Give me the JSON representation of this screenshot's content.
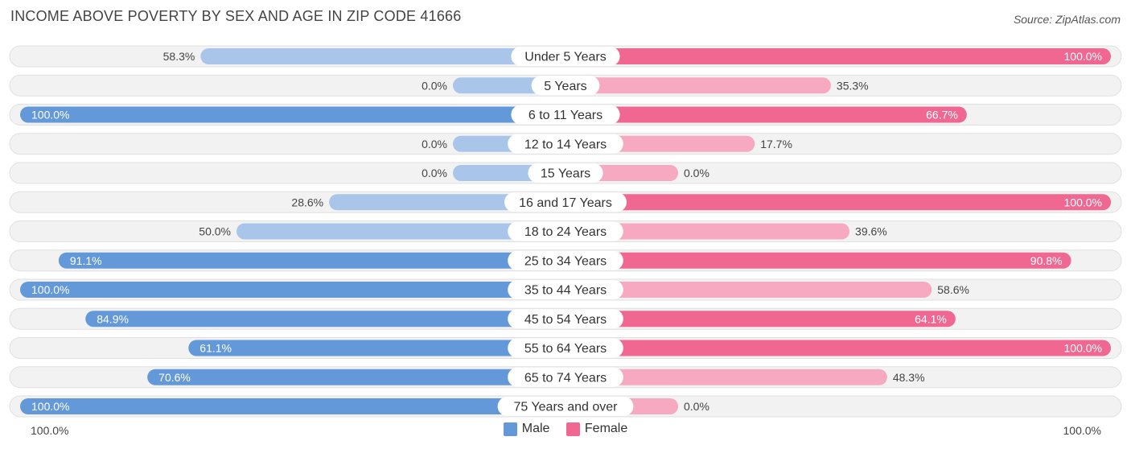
{
  "title": "INCOME ABOVE POVERTY BY SEX AND AGE IN ZIP CODE 41666",
  "source": "Source: ZipAtlas.com",
  "axis": {
    "left_label": "100.0%",
    "right_label": "100.0%"
  },
  "legend": {
    "male": "Male",
    "female": "Female"
  },
  "colors": {
    "male_strong": "#6399d9",
    "male_light": "#a9c6ea",
    "female_strong": "#f06892",
    "female_light": "#f6a9c1",
    "row_bg": "#f2f2f2",
    "row_border": "#e0e0e0"
  },
  "chart_data": {
    "type": "bar",
    "orientation": "horizontal-diverging",
    "categories": [
      "Under 5 Years",
      "5 Years",
      "6 to 11 Years",
      "12 to 14 Years",
      "15 Years",
      "16 and 17 Years",
      "18 to 24 Years",
      "25 to 34 Years",
      "35 to 44 Years",
      "45 to 54 Years",
      "55 to 64 Years",
      "65 to 74 Years",
      "75 Years and over"
    ],
    "series": [
      {
        "name": "Male",
        "values": [
          58.3,
          0.0,
          100.0,
          0.0,
          0.0,
          28.6,
          50.0,
          91.1,
          100.0,
          84.9,
          61.1,
          70.6,
          100.0
        ],
        "labels": [
          "58.3%",
          "0.0%",
          "100.0%",
          "0.0%",
          "0.0%",
          "28.6%",
          "50.0%",
          "91.1%",
          "100.0%",
          "84.9%",
          "61.1%",
          "70.6%",
          "100.0%"
        ]
      },
      {
        "name": "Female",
        "values": [
          100.0,
          35.3,
          66.7,
          17.7,
          0.0,
          100.0,
          39.6,
          90.8,
          58.6,
          64.1,
          100.0,
          48.3,
          0.0
        ],
        "labels": [
          "100.0%",
          "35.3%",
          "66.7%",
          "17.7%",
          "0.0%",
          "100.0%",
          "39.6%",
          "90.8%",
          "58.6%",
          "64.1%",
          "100.0%",
          "48.3%",
          "0.0%"
        ]
      }
    ],
    "xlim": [
      0,
      100
    ]
  }
}
